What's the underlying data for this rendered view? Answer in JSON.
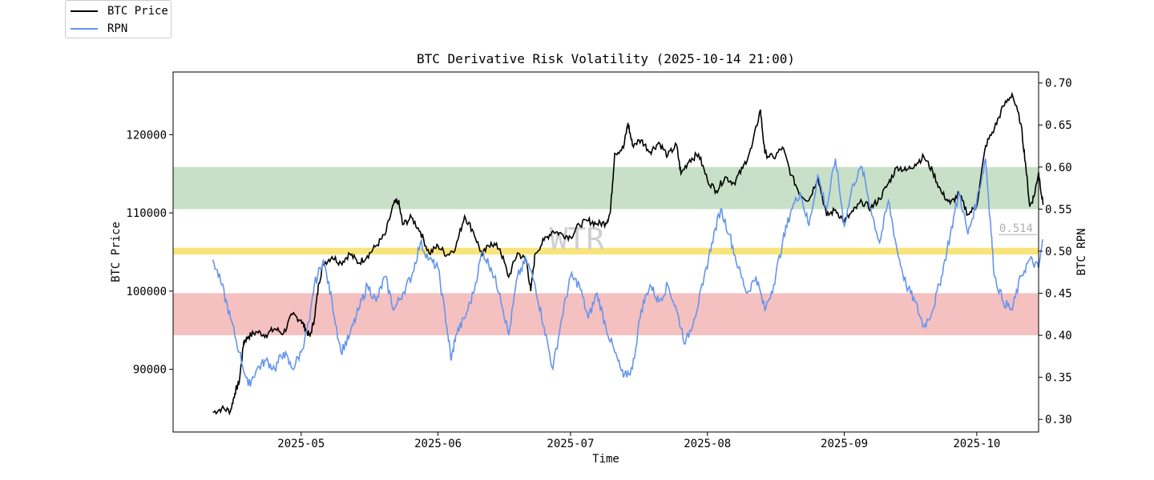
{
  "chart_data": {
    "type": "line",
    "title": "BTC Derivative Risk Volatility (2025-10-14 21:00)",
    "xlabel": "Time",
    "ylabel_left": "BTC Price",
    "ylabel_right": "BTC RPN",
    "x_ticks": [
      "2025-05",
      "2025-06",
      "2025-07",
      "2025-08",
      "2025-09",
      "2025-10"
    ],
    "x_tick_days": [
      13,
      44,
      74,
      105,
      136,
      166
    ],
    "x_range_days": [
      -16,
      180
    ],
    "y_left_ticks": [
      90000,
      100000,
      110000,
      120000
    ],
    "y_left_range": [
      82000,
      128000
    ],
    "y_right_ticks": [
      0.3,
      0.35,
      0.4,
      0.45,
      0.5,
      0.55,
      0.6,
      0.65,
      0.7
    ],
    "y_right_ticks_labels": [
      "0.30",
      "0.35",
      "0.40",
      "0.45",
      "0.50",
      "0.55",
      "0.60",
      "0.65",
      "0.70"
    ],
    "y_right_range": [
      0.285,
      0.713
    ],
    "bands": [
      {
        "name": "high-risk-band",
        "from": 0.55,
        "to": 0.6,
        "color": "#c8e0c8"
      },
      {
        "name": "low-risk-band",
        "from": 0.4,
        "to": 0.45,
        "color": "#f5c0c0"
      },
      {
        "name": "mid-line",
        "from": 0.496,
        "to": 0.504,
        "color": "#f8e47a"
      }
    ],
    "current_value_label": "0.514",
    "current_value": 0.514,
    "watermark": "WTR",
    "series": [
      {
        "name": "BTC Price",
        "axis": "left",
        "color": "#000000",
        "points": [
          [
            -7,
            84500
          ],
          [
            -5,
            85000
          ],
          [
            -3,
            84700
          ],
          [
            -2,
            87000
          ],
          [
            -1,
            88500
          ],
          [
            0,
            93500
          ],
          [
            1,
            94200
          ],
          [
            3,
            94800
          ],
          [
            5,
            94400
          ],
          [
            7,
            95200
          ],
          [
            9,
            94600
          ],
          [
            11,
            97000
          ],
          [
            13,
            96300
          ],
          [
            14,
            95100
          ],
          [
            15,
            94200
          ],
          [
            16,
            96500
          ],
          [
            17,
            101000
          ],
          [
            18,
            103500
          ],
          [
            20,
            104400
          ],
          [
            22,
            103600
          ],
          [
            24,
            104800
          ],
          [
            26,
            103600
          ],
          [
            28,
            104500
          ],
          [
            30,
            105800
          ],
          [
            32,
            107200
          ],
          [
            34,
            111200
          ],
          [
            35,
            111500
          ],
          [
            36,
            108500
          ],
          [
            38,
            109400
          ],
          [
            40,
            107600
          ],
          [
            42,
            104800
          ],
          [
            44,
            105800
          ],
          [
            46,
            104600
          ],
          [
            48,
            105600
          ],
          [
            50,
            109600
          ],
          [
            52,
            107600
          ],
          [
            54,
            104600
          ],
          [
            56,
            106200
          ],
          [
            58,
            105400
          ],
          [
            60,
            101800
          ],
          [
            62,
            104900
          ],
          [
            64,
            103900
          ],
          [
            65,
            100000
          ],
          [
            66,
            104800
          ],
          [
            68,
            106500
          ],
          [
            70,
            107700
          ],
          [
            72,
            107300
          ],
          [
            74,
            106900
          ],
          [
            76,
            108500
          ],
          [
            78,
            109000
          ],
          [
            80,
            108600
          ],
          [
            82,
            108700
          ],
          [
            83,
            110000
          ],
          [
            84,
            117600
          ],
          [
            86,
            118300
          ],
          [
            87,
            121500
          ],
          [
            88,
            118700
          ],
          [
            90,
            119300
          ],
          [
            92,
            117800
          ],
          [
            94,
            119000
          ],
          [
            96,
            117300
          ],
          [
            98,
            118700
          ],
          [
            99,
            115000
          ],
          [
            101,
            116800
          ],
          [
            103,
            117500
          ],
          [
            105,
            114200
          ],
          [
            107,
            112800
          ],
          [
            109,
            114600
          ],
          [
            111,
            113800
          ],
          [
            113,
            115700
          ],
          [
            115,
            118300
          ],
          [
            117,
            123200
          ],
          [
            118,
            117600
          ],
          [
            120,
            117000
          ],
          [
            122,
            118400
          ],
          [
            124,
            114800
          ],
          [
            126,
            112400
          ],
          [
            128,
            111600
          ],
          [
            130,
            114600
          ],
          [
            132,
            109600
          ],
          [
            134,
            110400
          ],
          [
            136,
            108900
          ],
          [
            138,
            110200
          ],
          [
            140,
            111400
          ],
          [
            142,
            110600
          ],
          [
            144,
            111800
          ],
          [
            146,
            113800
          ],
          [
            148,
            115900
          ],
          [
            150,
            115400
          ],
          [
            152,
            116200
          ],
          [
            154,
            117200
          ],
          [
            156,
            115300
          ],
          [
            158,
            112600
          ],
          [
            160,
            111200
          ],
          [
            162,
            112400
          ],
          [
            164,
            109800
          ],
          [
            166,
            110900
          ],
          [
            168,
            118600
          ],
          [
            170,
            120800
          ],
          [
            172,
            123600
          ],
          [
            174,
            125200
          ],
          [
            176,
            121400
          ],
          [
            177,
            116500
          ],
          [
            178,
            110800
          ],
          [
            179,
            112200
          ],
          [
            180,
            115200
          ],
          [
            181,
            111000
          ]
        ]
      },
      {
        "name": "RPN",
        "axis": "right",
        "color": "#6495ed",
        "points": [
          [
            -7,
            0.49
          ],
          [
            -5,
            0.46
          ],
          [
            -3,
            0.42
          ],
          [
            -1,
            0.38
          ],
          [
            1,
            0.34
          ],
          [
            3,
            0.36
          ],
          [
            5,
            0.37
          ],
          [
            7,
            0.36
          ],
          [
            9,
            0.38
          ],
          [
            11,
            0.36
          ],
          [
            13,
            0.38
          ],
          [
            15,
            0.42
          ],
          [
            16,
            0.46
          ],
          [
            18,
            0.49
          ],
          [
            20,
            0.44
          ],
          [
            22,
            0.38
          ],
          [
            24,
            0.4
          ],
          [
            26,
            0.43
          ],
          [
            28,
            0.46
          ],
          [
            30,
            0.44
          ],
          [
            32,
            0.47
          ],
          [
            34,
            0.43
          ],
          [
            36,
            0.45
          ],
          [
            38,
            0.47
          ],
          [
            40,
            0.51
          ],
          [
            42,
            0.49
          ],
          [
            44,
            0.48
          ],
          [
            46,
            0.41
          ],
          [
            47,
            0.37
          ],
          [
            48,
            0.4
          ],
          [
            50,
            0.42
          ],
          [
            52,
            0.45
          ],
          [
            54,
            0.5
          ],
          [
            56,
            0.48
          ],
          [
            58,
            0.45
          ],
          [
            60,
            0.4
          ],
          [
            62,
            0.47
          ],
          [
            64,
            0.49
          ],
          [
            66,
            0.46
          ],
          [
            68,
            0.41
          ],
          [
            70,
            0.36
          ],
          [
            72,
            0.42
          ],
          [
            74,
            0.47
          ],
          [
            76,
            0.46
          ],
          [
            78,
            0.42
          ],
          [
            80,
            0.45
          ],
          [
            82,
            0.41
          ],
          [
            84,
            0.38
          ],
          [
            86,
            0.35
          ],
          [
            88,
            0.36
          ],
          [
            90,
            0.43
          ],
          [
            92,
            0.46
          ],
          [
            94,
            0.44
          ],
          [
            96,
            0.46
          ],
          [
            98,
            0.43
          ],
          [
            100,
            0.39
          ],
          [
            102,
            0.42
          ],
          [
            104,
            0.46
          ],
          [
            106,
            0.51
          ],
          [
            108,
            0.55
          ],
          [
            110,
            0.52
          ],
          [
            112,
            0.48
          ],
          [
            114,
            0.45
          ],
          [
            116,
            0.47
          ],
          [
            118,
            0.43
          ],
          [
            120,
            0.46
          ],
          [
            122,
            0.51
          ],
          [
            124,
            0.55
          ],
          [
            126,
            0.57
          ],
          [
            128,
            0.53
          ],
          [
            130,
            0.59
          ],
          [
            132,
            0.55
          ],
          [
            134,
            0.61
          ],
          [
            136,
            0.53
          ],
          [
            138,
            0.58
          ],
          [
            140,
            0.6
          ],
          [
            142,
            0.55
          ],
          [
            144,
            0.51
          ],
          [
            146,
            0.56
          ],
          [
            148,
            0.5
          ],
          [
            150,
            0.46
          ],
          [
            152,
            0.44
          ],
          [
            154,
            0.41
          ],
          [
            156,
            0.43
          ],
          [
            158,
            0.47
          ],
          [
            160,
            0.52
          ],
          [
            162,
            0.57
          ],
          [
            164,
            0.52
          ],
          [
            166,
            0.56
          ],
          [
            168,
            0.61
          ],
          [
            169,
            0.54
          ],
          [
            170,
            0.47
          ],
          [
            172,
            0.44
          ],
          [
            174,
            0.43
          ],
          [
            176,
            0.47
          ],
          [
            178,
            0.49
          ],
          [
            180,
            0.48
          ],
          [
            181,
            0.514
          ]
        ]
      }
    ]
  }
}
